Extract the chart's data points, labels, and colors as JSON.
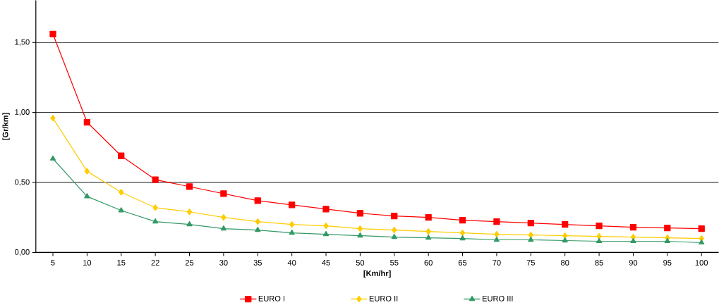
{
  "chart_data": {
    "type": "line",
    "xlabel": "[Km/hr]",
    "ylabel": "[Gr/km]",
    "categories": [
      "5",
      "10",
      "15",
      "22",
      "25",
      "30",
      "35",
      "40",
      "45",
      "50",
      "55",
      "60",
      "65",
      "70",
      "75",
      "80",
      "85",
      "90",
      "95",
      "100"
    ],
    "series": [
      {
        "name": "EURO I",
        "color": "#ff0000",
        "marker": "square",
        "values": [
          1.56,
          0.93,
          0.69,
          0.52,
          0.47,
          0.42,
          0.37,
          0.34,
          0.31,
          0.28,
          0.26,
          0.25,
          0.23,
          0.22,
          0.21,
          0.2,
          0.19,
          0.18,
          0.175,
          0.17
        ]
      },
      {
        "name": "EURO II",
        "color": "#ffcc00",
        "marker": "diamond",
        "values": [
          0.96,
          0.58,
          0.43,
          0.32,
          0.29,
          0.25,
          0.22,
          0.2,
          0.19,
          0.17,
          0.16,
          0.15,
          0.14,
          0.13,
          0.125,
          0.12,
          0.115,
          0.11,
          0.105,
          0.1
        ]
      },
      {
        "name": "EURO III",
        "color": "#339966",
        "marker": "triangle",
        "values": [
          0.67,
          0.4,
          0.3,
          0.22,
          0.2,
          0.17,
          0.16,
          0.14,
          0.13,
          0.12,
          0.11,
          0.105,
          0.1,
          0.09,
          0.09,
          0.085,
          0.08,
          0.08,
          0.08,
          0.07
        ]
      }
    ],
    "ylim": [
      0,
      1.8
    ],
    "yticks": [
      {
        "value": 0,
        "label": "0,00"
      },
      {
        "value": 0.5,
        "label": "0,50"
      },
      {
        "value": 1.0,
        "label": "1,00"
      },
      {
        "value": 1.5,
        "label": "1,50"
      }
    ],
    "grid": "y",
    "legend": "bottom"
  }
}
